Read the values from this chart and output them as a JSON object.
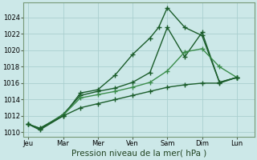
{
  "background_color": "#cce8e8",
  "grid_color": "#aacfcf",
  "line_dark": "#1a5c2a",
  "line_light": "#3a8c4a",
  "xlabel": "Pression niveau de la mer( hPa )",
  "ylim": [
    1009.5,
    1025.8
  ],
  "yticks": [
    1010,
    1012,
    1014,
    1016,
    1018,
    1020,
    1022,
    1024
  ],
  "xtick_labels": [
    "Jeu",
    "Mar",
    "Mer",
    "Ven",
    "Sam",
    "Dim",
    "Lun"
  ],
  "xtick_pos": [
    0,
    1,
    2,
    3,
    4,
    5,
    6
  ],
  "line1_x": [
    0,
    0.33,
    1.0,
    1.5,
    2.0,
    2.5,
    3.0,
    3.5,
    3.75,
    4.0,
    4.5,
    5.0,
    5.5,
    6.0
  ],
  "line1_y": [
    1011.0,
    1010.3,
    1012.0,
    1014.8,
    1015.2,
    1017.0,
    1019.5,
    1021.5,
    1022.8,
    1025.2,
    1022.8,
    1021.8,
    1016.1,
    1016.7
  ],
  "line2_x": [
    0,
    0.33,
    1.0,
    1.5,
    2.0,
    2.5,
    3.0,
    3.5,
    4.0,
    4.5,
    5.0,
    5.5,
    6.0
  ],
  "line2_y": [
    1011.0,
    1010.4,
    1012.2,
    1014.5,
    1015.0,
    1015.4,
    1016.1,
    1017.3,
    1022.8,
    1019.2,
    1022.2,
    1016.1,
    1016.7
  ],
  "line3_x": [
    0,
    0.33,
    1.0,
    1.5,
    2.0,
    2.5,
    3.0,
    3.5,
    4.0,
    4.5,
    5.0,
    5.5,
    6.0
  ],
  "line3_y": [
    1011.0,
    1010.5,
    1012.1,
    1014.2,
    1014.6,
    1015.0,
    1015.5,
    1016.1,
    1017.5,
    1019.8,
    1020.2,
    1018.0,
    1016.7
  ],
  "line4_x": [
    0,
    0.33,
    1.0,
    1.5,
    2.0,
    2.5,
    3.0,
    3.5,
    4.0,
    4.5,
    5.0,
    5.5,
    6.0
  ],
  "line4_y": [
    1011.0,
    1010.5,
    1012.0,
    1013.0,
    1013.5,
    1014.0,
    1014.5,
    1015.0,
    1015.5,
    1015.8,
    1016.0,
    1016.0,
    1016.7
  ]
}
